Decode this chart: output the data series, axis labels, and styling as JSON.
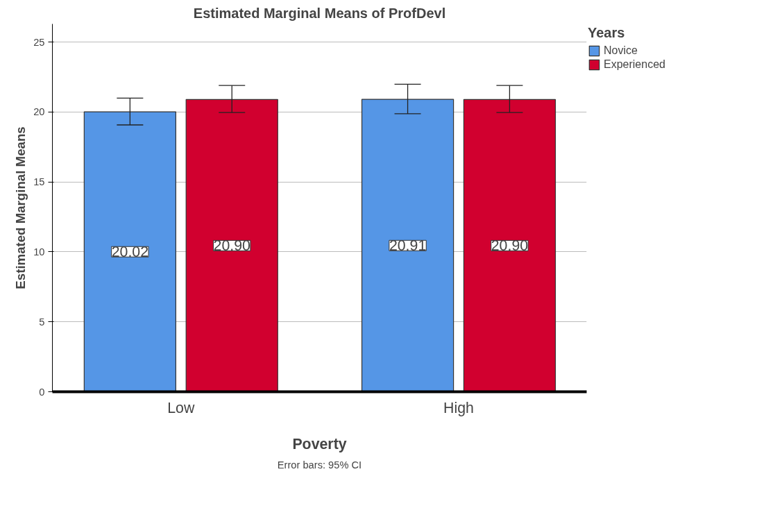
{
  "chart_data": {
    "type": "bar",
    "title": "Estimated Marginal Means of ProfDevl",
    "xlabel": "Poverty",
    "ylabel": "Estimated Marginal Means",
    "legend_title": "Years",
    "categories": [
      "Low",
      "High"
    ],
    "series": [
      {
        "name": "Novice",
        "color": "#5596e6",
        "values": [
          20.02,
          20.91
        ],
        "value_labels": [
          "20.02",
          "20.91"
        ],
        "errors": [
          [
            19.08,
            21.0
          ],
          [
            19.88,
            21.99
          ]
        ]
      },
      {
        "name": "Experienced",
        "color": "#d1002f",
        "values": [
          20.9,
          20.9
        ],
        "value_labels": [
          "20.90",
          "20.90"
        ],
        "errors": [
          [
            19.97,
            21.9
          ],
          [
            19.97,
            21.9
          ]
        ]
      }
    ],
    "ylim": [
      0,
      26.3
    ],
    "yticks": [
      0,
      5,
      10,
      15,
      20,
      25
    ],
    "grid": "y",
    "legend": "top right",
    "annotations": [
      "Error bars: 95% CI"
    ]
  }
}
